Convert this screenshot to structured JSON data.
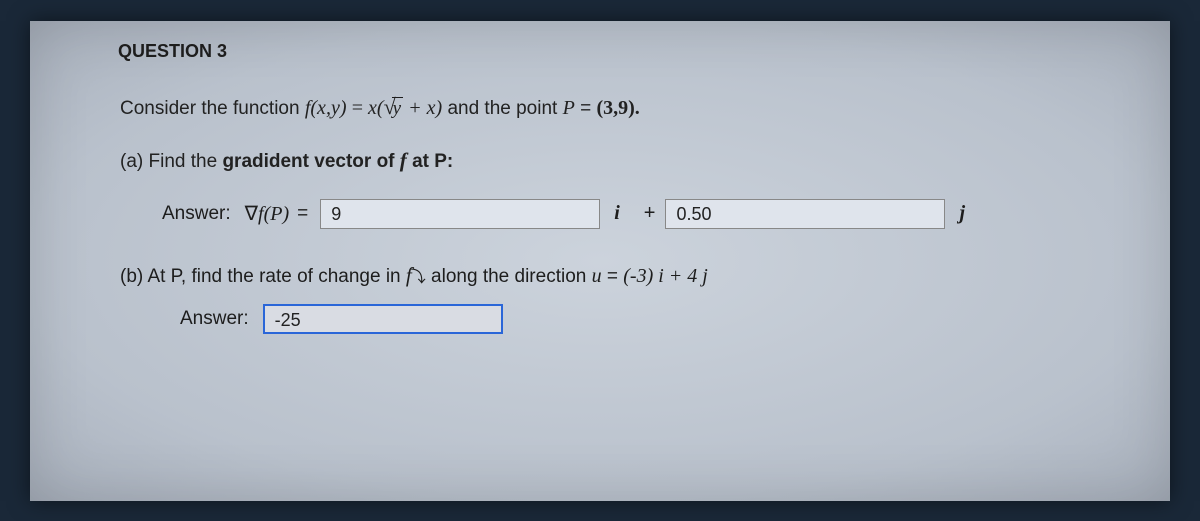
{
  "question": {
    "header": "QUESTION 3",
    "intro_prefix": "Consider the function ",
    "func_lhs": "f(x,y)",
    "func_eq": " = ",
    "func_rhs_x": "x(",
    "sqrt_arg": "y",
    "func_rhs_after_sqrt": " + x)",
    "intro_suffix_1": " and  the point ",
    "point_P": "P",
    "equiv_sym": " = ",
    "point_val": "(3,9)."
  },
  "part_a": {
    "prompt_prefix": "(a) Find the ",
    "prompt_bold": "gradident vector  of ",
    "f_italic": "f",
    "prompt_suffix": "  at P:",
    "answer_label": "Answer:",
    "grad_symbol": "∇f(P)",
    "eq": " =",
    "input_i_value": "9",
    "i_label": "i",
    "plus": "+",
    "input_j_value": "0.50",
    "j_label": "j"
  },
  "part_b": {
    "prompt_prefix": "(b) ",
    "bold_1": "At P,",
    "mid_1": "  find  ",
    "bold_2": "the rate  of change in ",
    "f_italic": "f",
    "bold_3": "along the direction ",
    "u_expr_u": "u",
    "u_expr_eq": " =  ",
    "u_expr_val": "(-3) i +  4 j",
    "answer_label": "Answer:",
    "input_value": "-25"
  },
  "colors": {
    "page_bg": "#c4cbd6",
    "text": "#1d1d1d",
    "input_border": "#888888",
    "input_border_active": "#2a66d8"
  }
}
